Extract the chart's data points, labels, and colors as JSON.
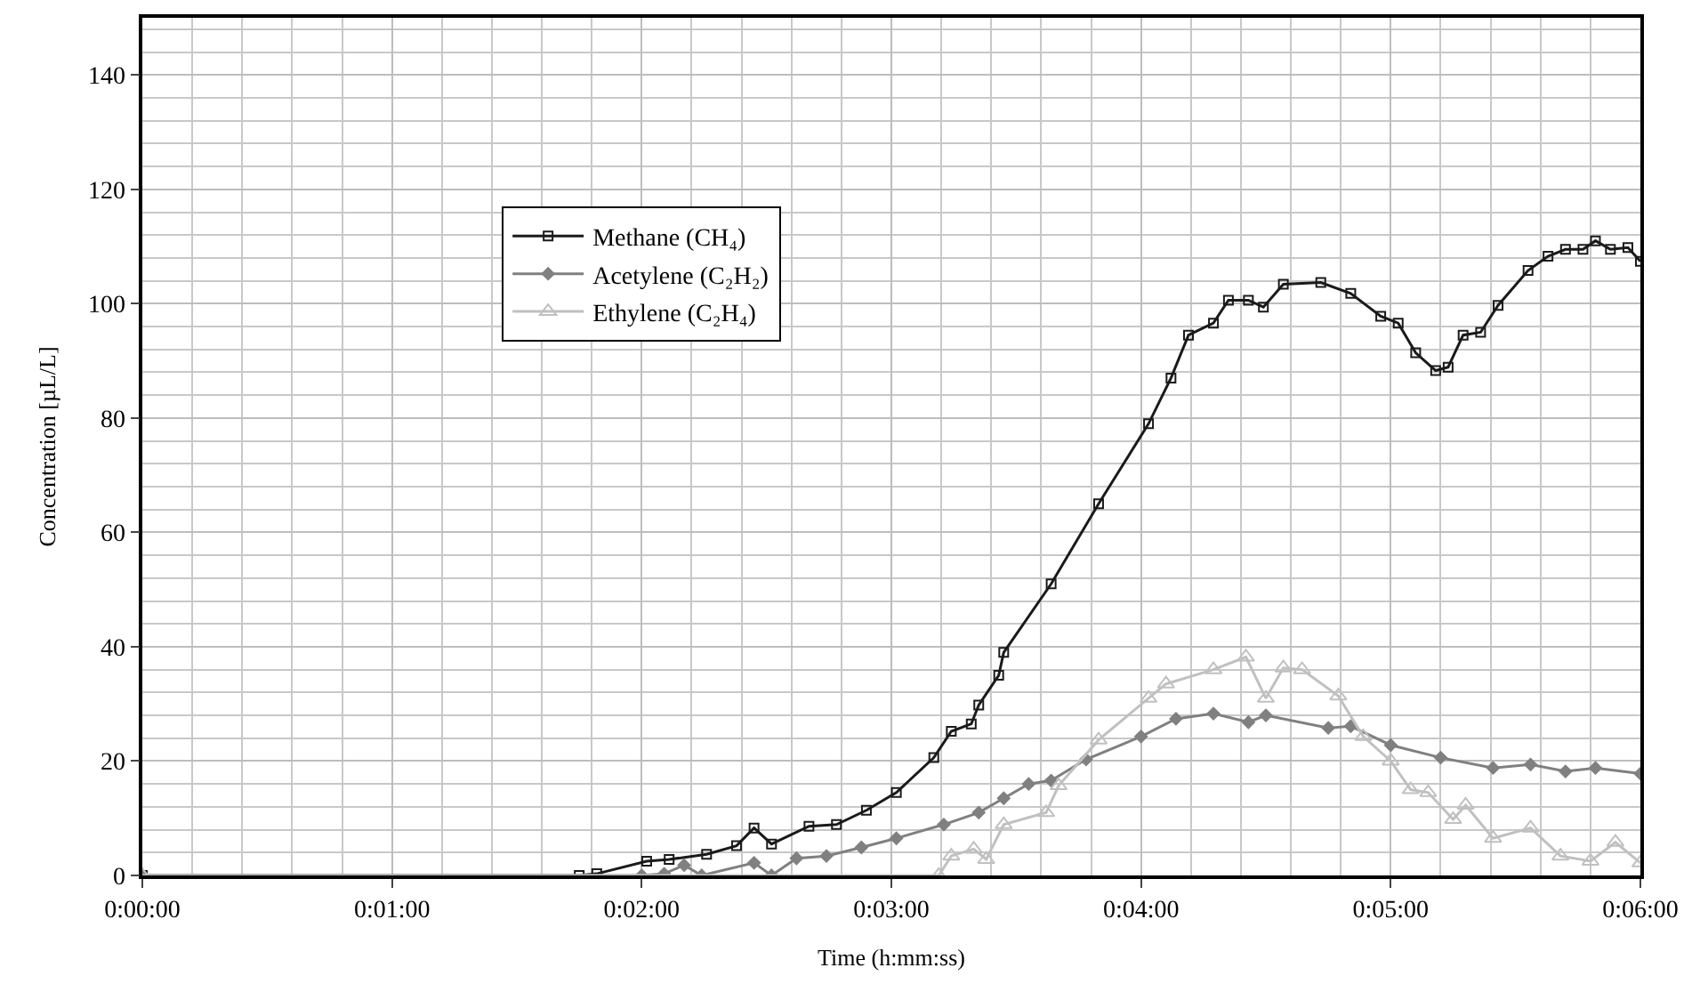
{
  "chart_data": {
    "type": "line",
    "xlabel": "Time (h:mm:ss)",
    "ylabel": "Concentration [µL/L]",
    "xlim": [
      0,
      6
    ],
    "xticks": [
      {
        "value": 0,
        "label": "0:00:00"
      },
      {
        "value": 1,
        "label": "0:01:00"
      },
      {
        "value": 2,
        "label": "0:02:00"
      },
      {
        "value": 3,
        "label": "0:03:00"
      },
      {
        "value": 4,
        "label": "0:04:00"
      },
      {
        "value": 5,
        "label": "0:05:00"
      },
      {
        "value": 6,
        "label": "0:06:00"
      }
    ],
    "ylim": [
      0,
      150
    ],
    "yticks": [
      0,
      20,
      40,
      60,
      80,
      100,
      120,
      140
    ],
    "grid": true,
    "legend": "center",
    "line_style": "solid",
    "series": [
      {
        "name": "Methane (CH₄)",
        "color": "#1a1a1a",
        "marker": "square",
        "x": [
          0,
          1.75,
          1.82,
          2.02,
          2.11,
          2.26,
          2.38,
          2.45,
          2.52,
          2.67,
          2.78,
          2.9,
          3.02,
          3.17,
          3.24,
          3.32,
          3.35,
          3.43,
          3.45,
          3.64,
          3.83,
          4.03,
          4.12,
          4.19,
          4.29,
          4.35,
          4.43,
          4.49,
          4.57,
          4.72,
          4.84,
          4.96,
          5.03,
          5.1,
          5.18,
          5.23,
          5.29,
          5.36,
          5.43,
          5.55,
          5.63,
          5.7,
          5.77,
          5.82,
          5.88,
          5.95,
          6.0
        ],
        "values": [
          0,
          0,
          0.3,
          2.5,
          2.8,
          3.7,
          5.2,
          8.3,
          5.5,
          8.6,
          8.9,
          11.4,
          14.5,
          20.6,
          25.2,
          26.5,
          29.8,
          35,
          39,
          51,
          65,
          79,
          87,
          94.5,
          96.6,
          100.6,
          100.6,
          99.4,
          103.4,
          103.7,
          101.8,
          97.8,
          96.6,
          91.4,
          88.3,
          88.9,
          94.5,
          95,
          99.7,
          105.8,
          108.3,
          109.5,
          109.5,
          111,
          109.5,
          109.8,
          107.4
        ]
      },
      {
        "name": "Acetylene (C₂H₂)",
        "color": "#808080",
        "marker": "diamond",
        "x": [
          0,
          2.0,
          2.09,
          2.17,
          2.24,
          2.45,
          2.52,
          2.62,
          2.74,
          2.88,
          3.02,
          3.21,
          3.35,
          3.45,
          3.55,
          3.64,
          3.78,
          4.0,
          4.14,
          4.29,
          4.43,
          4.5,
          4.75,
          4.84,
          5.0,
          5.2,
          5.41,
          5.56,
          5.7,
          5.82,
          6.0
        ],
        "values": [
          0,
          0,
          0.3,
          1.8,
          0,
          2.2,
          0,
          3,
          3.4,
          4.9,
          6.5,
          8.9,
          11,
          13.5,
          16,
          16.6,
          20.3,
          24.3,
          27.4,
          28.3,
          26.8,
          28,
          25.8,
          26.1,
          22.8,
          20.6,
          18.8,
          19.4,
          18.2,
          18.8,
          17.8
        ]
      },
      {
        "name": "Ethylene (C₂H₄)",
        "color": "#c0c0c0",
        "marker": "triangle",
        "x": [
          0,
          3.19,
          3.24,
          3.33,
          3.38,
          3.45,
          3.62,
          3.67,
          3.83,
          4.03,
          4.1,
          4.29,
          4.42,
          4.5,
          4.57,
          4.645,
          4.79,
          4.89,
          5.0,
          5.08,
          5.15,
          5.25,
          5.3,
          5.41,
          5.56,
          5.68,
          5.8,
          5.9,
          6.0
        ],
        "values": [
          0,
          0,
          3.4,
          4.6,
          2.8,
          8.9,
          11,
          15.7,
          23.7,
          31,
          33.5,
          36,
          38.2,
          31,
          36.3,
          36,
          31.4,
          24.3,
          20,
          15,
          14.5,
          9.8,
          12.3,
          6.5,
          8.3,
          3.4,
          2.5,
          5.8,
          2.2
        ]
      }
    ]
  }
}
